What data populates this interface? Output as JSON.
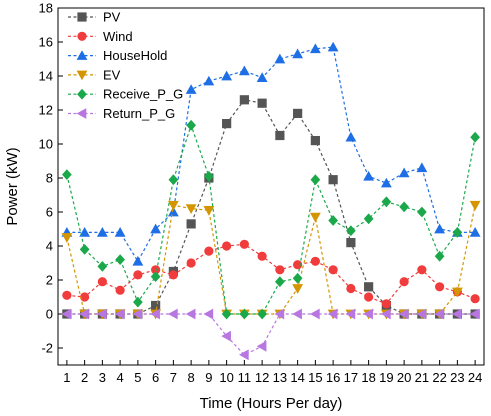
{
  "chart_data": {
    "type": "line",
    "xlabel": "Time (Hours Per day)",
    "ylabel": "Power (kW)",
    "xlim": [
      0.5,
      24.5
    ],
    "ylim": [
      -3,
      18
    ],
    "x_ticks": [
      1,
      2,
      3,
      4,
      5,
      6,
      7,
      8,
      9,
      10,
      11,
      12,
      13,
      14,
      15,
      16,
      17,
      18,
      19,
      20,
      21,
      22,
      23,
      24
    ],
    "y_ticks": [
      -2,
      0,
      2,
      4,
      6,
      8,
      10,
      12,
      14,
      16,
      18
    ],
    "grid": false,
    "legend_position": "top-left",
    "x": [
      1,
      2,
      3,
      4,
      5,
      6,
      7,
      8,
      9,
      10,
      11,
      12,
      13,
      14,
      15,
      16,
      17,
      18,
      19,
      20,
      21,
      22,
      23,
      24
    ],
    "series": [
      {
        "name": "PV",
        "color": "#555555",
        "marker": "square",
        "values": [
          0,
          0,
          0,
          0,
          0,
          0.5,
          2.5,
          5.3,
          8.0,
          11.2,
          12.6,
          12.4,
          10.5,
          11.8,
          10.2,
          7.9,
          4.2,
          1.6,
          0.5,
          0,
          0,
          0,
          0,
          0
        ]
      },
      {
        "name": "Wind",
        "color": "#f03c3c",
        "marker": "circle",
        "values": [
          1.1,
          1.0,
          1.9,
          1.4,
          2.3,
          2.6,
          2.3,
          3.0,
          3.7,
          4.0,
          4.1,
          3.4,
          2.6,
          2.9,
          3.1,
          2.6,
          1.5,
          1.0,
          0.6,
          1.9,
          2.6,
          1.6,
          1.3,
          0.9
        ]
      },
      {
        "name": "HouseHold",
        "color": "#1e6ee6",
        "marker": "triangle-up",
        "values": [
          4.8,
          4.8,
          4.8,
          4.8,
          3.1,
          5.0,
          6.0,
          13.2,
          13.7,
          14.0,
          14.3,
          13.9,
          15.0,
          15.3,
          15.6,
          15.7,
          10.4,
          8.1,
          7.7,
          8.3,
          8.6,
          5.0,
          4.8,
          4.8
        ]
      },
      {
        "name": "EV",
        "color": "#d49500",
        "marker": "triangle-down",
        "values": [
          4.5,
          0,
          0,
          0,
          0,
          0,
          6.4,
          6.2,
          6.1,
          0,
          0,
          0,
          0,
          1.5,
          5.7,
          0,
          0,
          0,
          0,
          0,
          0,
          0,
          1.3,
          6.4
        ]
      },
      {
        "name": "Receive_P_G",
        "color": "#1aa84a",
        "marker": "diamond",
        "values": [
          8.2,
          3.8,
          2.8,
          3.2,
          0.7,
          2.2,
          7.9,
          11.1,
          8.1,
          0,
          0,
          0,
          1.9,
          2.1,
          7.9,
          5.5,
          4.9,
          5.6,
          6.6,
          6.3,
          6.0,
          3.4,
          4.8,
          10.4
        ]
      },
      {
        "name": "Return_P_G",
        "color": "#b877e0",
        "marker": "triangle-left",
        "values": [
          0,
          0,
          0,
          0,
          0,
          0,
          0,
          0,
          0,
          -1.3,
          -2.4,
          -1.9,
          0,
          0,
          0,
          0,
          0,
          0,
          0,
          0,
          0,
          0,
          0,
          0
        ]
      }
    ]
  }
}
